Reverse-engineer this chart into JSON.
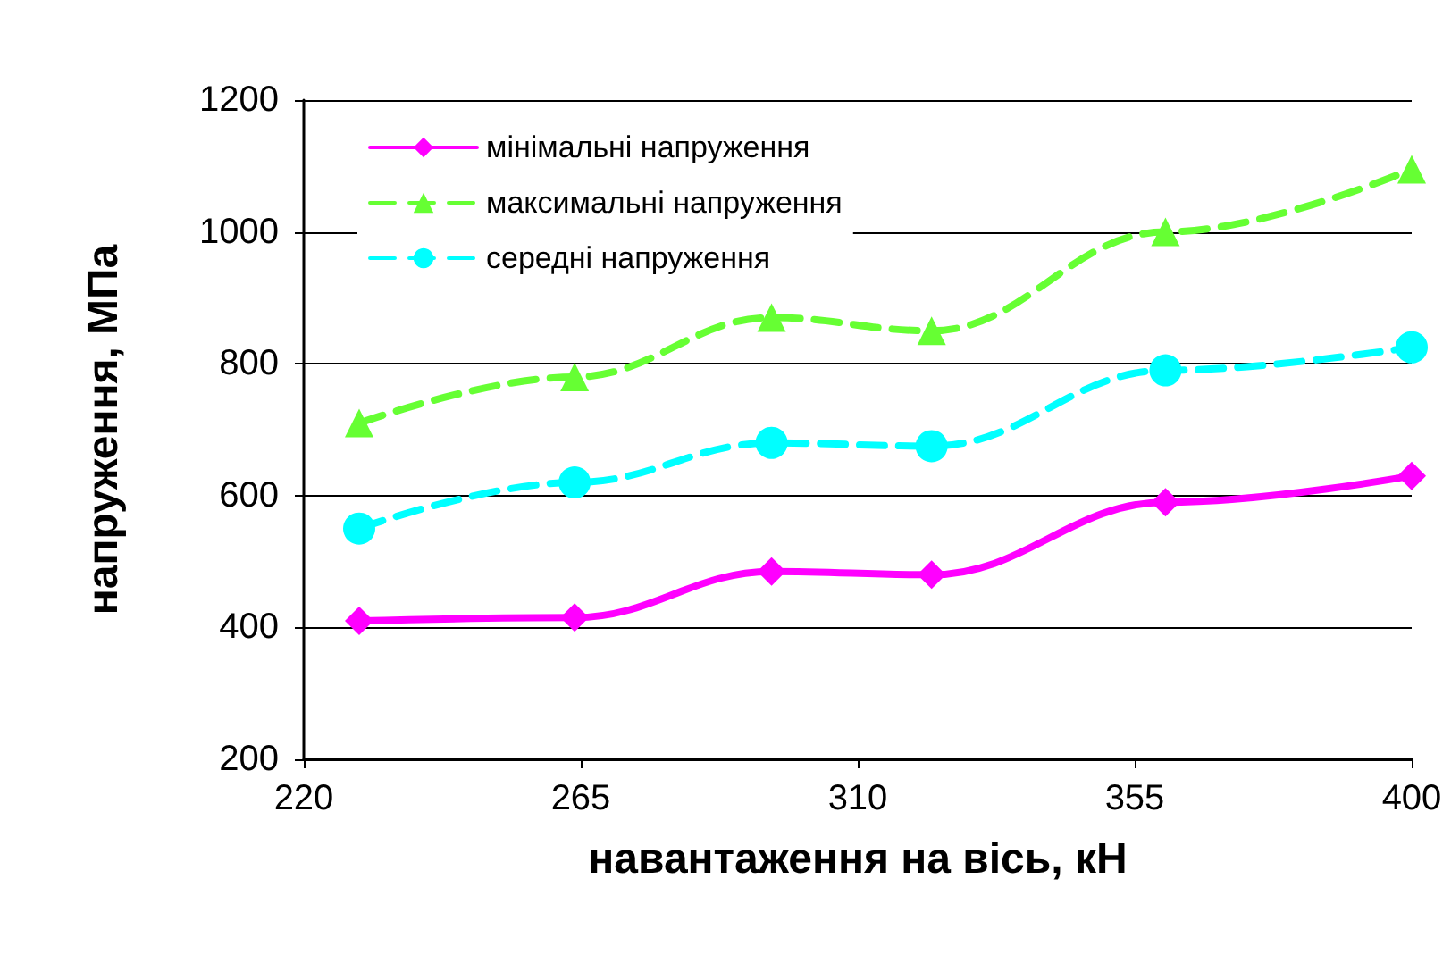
{
  "chart_data": {
    "type": "line",
    "xlabel": "навантаження на вісь, кН",
    "ylabel": "напруження, МПа",
    "xlim": [
      220,
      400
    ],
    "xticks": [
      220,
      265,
      310,
      355,
      400
    ],
    "ylim": [
      200,
      1200
    ],
    "yticks": [
      200,
      400,
      600,
      800,
      1000,
      1200
    ],
    "grid": "y",
    "legend": "top left",
    "series": [
      {
        "name": "мінімальні напруження",
        "color": "#ff00ff",
        "marker": "diamond",
        "line_style": "solid",
        "x": [
          229,
          264,
          296,
          322,
          360,
          400
        ],
        "values": [
          410,
          415,
          485,
          480,
          590,
          630
        ]
      },
      {
        "name": "максимальні напруження",
        "color": "#66ff33",
        "marker": "triangle",
        "line_style": "dashed",
        "x": [
          229,
          264,
          296,
          322,
          360,
          400
        ],
        "values": [
          710,
          780,
          870,
          850,
          1000,
          1095
        ]
      },
      {
        "name": "середні напруження",
        "color": "#00ffff",
        "marker": "circle",
        "line_style": "dashed",
        "x": [
          229,
          264,
          296,
          322,
          360,
          400
        ],
        "values": [
          550,
          620,
          680,
          675,
          790,
          825
        ]
      }
    ]
  }
}
